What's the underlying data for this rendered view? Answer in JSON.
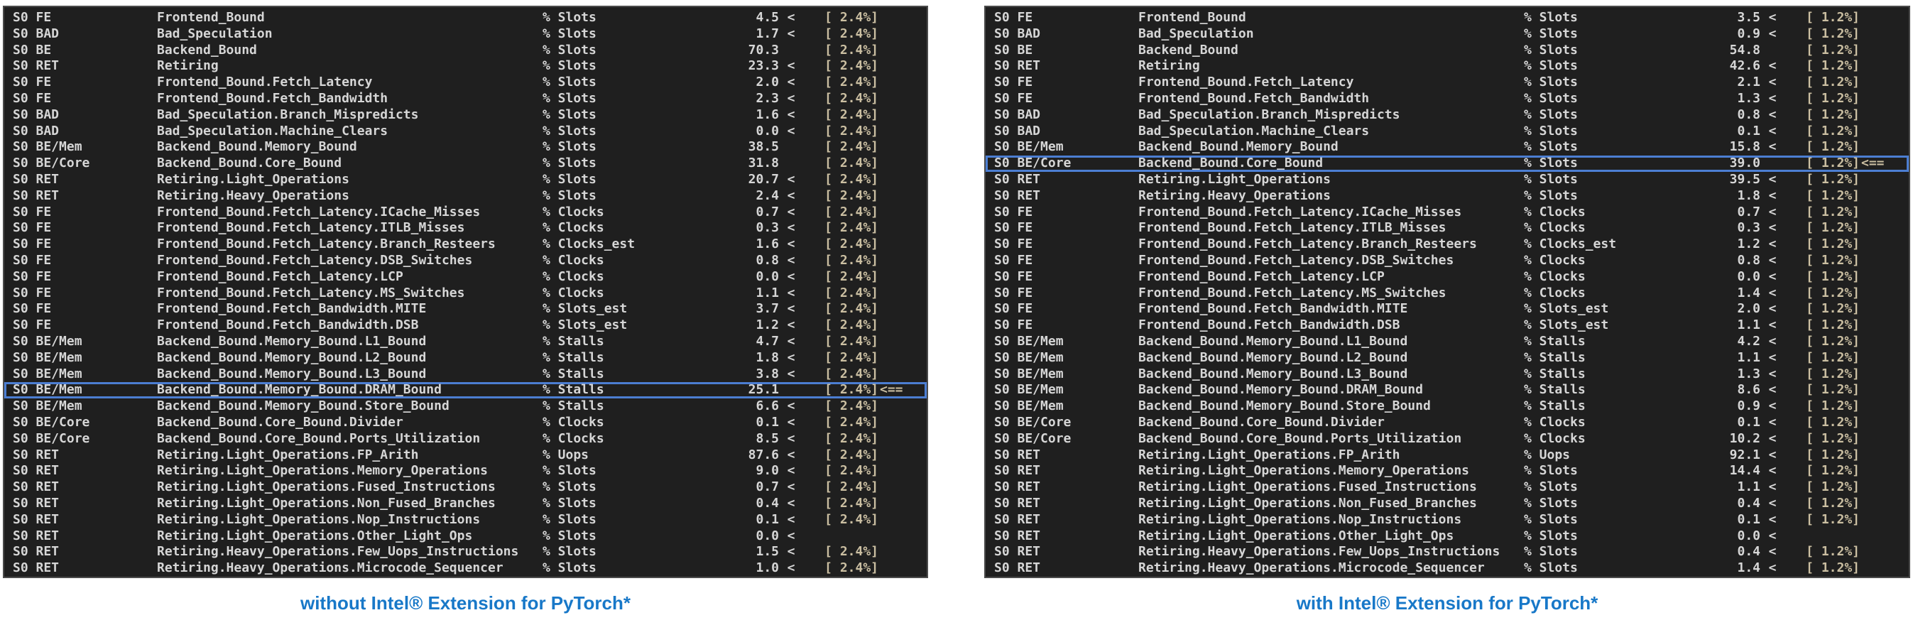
{
  "colors": {
    "terminal_bg": "#1f1f1f",
    "terminal_text": "#d6d6d6",
    "threshold_text": "#cbbfa2",
    "highlight_border": "#4c7ed2",
    "caption_blue": "#1878c8",
    "page_bg": "#ffffff"
  },
  "panels": [
    {
      "caption": "without Intel® Extension for PyTorch*",
      "rows": [
        {
          "domain": "S0 FE",
          "name": "Frontend_Bound",
          "unit": "% Slots",
          "value": "4.5",
          "flag": "<",
          "threshold": "[ 2.4%]",
          "marker": "",
          "highlight": false
        },
        {
          "domain": "S0 BAD",
          "name": "Bad_Speculation",
          "unit": "% Slots",
          "value": "1.7",
          "flag": "<",
          "threshold": "[ 2.4%]",
          "marker": "",
          "highlight": false
        },
        {
          "domain": "S0 BE",
          "name": "Backend_Bound",
          "unit": "% Slots",
          "value": "70.3",
          "flag": "",
          "threshold": "[ 2.4%]",
          "marker": "",
          "highlight": false
        },
        {
          "domain": "S0 RET",
          "name": "Retiring",
          "unit": "% Slots",
          "value": "23.3",
          "flag": "<",
          "threshold": "[ 2.4%]",
          "marker": "",
          "highlight": false
        },
        {
          "domain": "S0 FE",
          "name": "Frontend_Bound.Fetch_Latency",
          "unit": "% Slots",
          "value": "2.0",
          "flag": "<",
          "threshold": "[ 2.4%]",
          "marker": "",
          "highlight": false
        },
        {
          "domain": "S0 FE",
          "name": "Frontend_Bound.Fetch_Bandwidth",
          "unit": "% Slots",
          "value": "2.3",
          "flag": "<",
          "threshold": "[ 2.4%]",
          "marker": "",
          "highlight": false
        },
        {
          "domain": "S0 BAD",
          "name": "Bad_Speculation.Branch_Mispredicts",
          "unit": "% Slots",
          "value": "1.6",
          "flag": "<",
          "threshold": "[ 2.4%]",
          "marker": "",
          "highlight": false
        },
        {
          "domain": "S0 BAD",
          "name": "Bad_Speculation.Machine_Clears",
          "unit": "% Slots",
          "value": "0.0",
          "flag": "<",
          "threshold": "[ 2.4%]",
          "marker": "",
          "highlight": false
        },
        {
          "domain": "S0 BE/Mem",
          "name": "Backend_Bound.Memory_Bound",
          "unit": "% Slots",
          "value": "38.5",
          "flag": "",
          "threshold": "[ 2.4%]",
          "marker": "",
          "highlight": false
        },
        {
          "domain": "S0 BE/Core",
          "name": "Backend_Bound.Core_Bound",
          "unit": "% Slots",
          "value": "31.8",
          "flag": "",
          "threshold": "[ 2.4%]",
          "marker": "",
          "highlight": false
        },
        {
          "domain": "S0 RET",
          "name": "Retiring.Light_Operations",
          "unit": "% Slots",
          "value": "20.7",
          "flag": "<",
          "threshold": "[ 2.4%]",
          "marker": "",
          "highlight": false
        },
        {
          "domain": "S0 RET",
          "name": "Retiring.Heavy_Operations",
          "unit": "% Slots",
          "value": "2.4",
          "flag": "<",
          "threshold": "[ 2.4%]",
          "marker": "",
          "highlight": false
        },
        {
          "domain": "S0 FE",
          "name": "Frontend_Bound.Fetch_Latency.ICache_Misses",
          "unit": "% Clocks",
          "value": "0.7",
          "flag": "<",
          "threshold": "[ 2.4%]",
          "marker": "",
          "highlight": false
        },
        {
          "domain": "S0 FE",
          "name": "Frontend_Bound.Fetch_Latency.ITLB_Misses",
          "unit": "% Clocks",
          "value": "0.3",
          "flag": "<",
          "threshold": "[ 2.4%]",
          "marker": "",
          "highlight": false
        },
        {
          "domain": "S0 FE",
          "name": "Frontend_Bound.Fetch_Latency.Branch_Resteers",
          "unit": "% Clocks_est",
          "value": "1.6",
          "flag": "<",
          "threshold": "[ 2.4%]",
          "marker": "",
          "highlight": false
        },
        {
          "domain": "S0 FE",
          "name": "Frontend_Bound.Fetch_Latency.DSB_Switches",
          "unit": "% Clocks",
          "value": "0.8",
          "flag": "<",
          "threshold": "[ 2.4%]",
          "marker": "",
          "highlight": false
        },
        {
          "domain": "S0 FE",
          "name": "Frontend_Bound.Fetch_Latency.LCP",
          "unit": "% Clocks",
          "value": "0.0",
          "flag": "<",
          "threshold": "[ 2.4%]",
          "marker": "",
          "highlight": false
        },
        {
          "domain": "S0 FE",
          "name": "Frontend_Bound.Fetch_Latency.MS_Switches",
          "unit": "% Clocks",
          "value": "1.1",
          "flag": "<",
          "threshold": "[ 2.4%]",
          "marker": "",
          "highlight": false
        },
        {
          "domain": "S0 FE",
          "name": "Frontend_Bound.Fetch_Bandwidth.MITE",
          "unit": "% Slots_est",
          "value": "3.7",
          "flag": "<",
          "threshold": "[ 2.4%]",
          "marker": "",
          "highlight": false
        },
        {
          "domain": "S0 FE",
          "name": "Frontend_Bound.Fetch_Bandwidth.DSB",
          "unit": "% Slots_est",
          "value": "1.2",
          "flag": "<",
          "threshold": "[ 2.4%]",
          "marker": "",
          "highlight": false
        },
        {
          "domain": "S0 BE/Mem",
          "name": "Backend_Bound.Memory_Bound.L1_Bound",
          "unit": "% Stalls",
          "value": "4.7",
          "flag": "<",
          "threshold": "[ 2.4%]",
          "marker": "",
          "highlight": false
        },
        {
          "domain": "S0 BE/Mem",
          "name": "Backend_Bound.Memory_Bound.L2_Bound",
          "unit": "% Stalls",
          "value": "1.8",
          "flag": "<",
          "threshold": "[ 2.4%]",
          "marker": "",
          "highlight": false
        },
        {
          "domain": "S0 BE/Mem",
          "name": "Backend_Bound.Memory_Bound.L3_Bound",
          "unit": "% Stalls",
          "value": "3.8",
          "flag": "<",
          "threshold": "[ 2.4%]",
          "marker": "",
          "highlight": false
        },
        {
          "domain": "S0 BE/Mem",
          "name": "Backend_Bound.Memory_Bound.DRAM_Bound",
          "unit": "% Stalls",
          "value": "25.1",
          "flag": "",
          "threshold": "[ 2.4%]",
          "marker": "<==",
          "highlight": true
        },
        {
          "domain": "S0 BE/Mem",
          "name": "Backend_Bound.Memory_Bound.Store_Bound",
          "unit": "% Stalls",
          "value": "6.6",
          "flag": "<",
          "threshold": "[ 2.4%]",
          "marker": "",
          "highlight": false
        },
        {
          "domain": "S0 BE/Core",
          "name": "Backend_Bound.Core_Bound.Divider",
          "unit": "% Clocks",
          "value": "0.1",
          "flag": "<",
          "threshold": "[ 2.4%]",
          "marker": "",
          "highlight": false
        },
        {
          "domain": "S0 BE/Core",
          "name": "Backend_Bound.Core_Bound.Ports_Utilization",
          "unit": "% Clocks",
          "value": "8.5",
          "flag": "<",
          "threshold": "[ 2.4%]",
          "marker": "",
          "highlight": false
        },
        {
          "domain": "S0 RET",
          "name": "Retiring.Light_Operations.FP_Arith",
          "unit": "% Uops",
          "value": "87.6",
          "flag": "<",
          "threshold": "[ 2.4%]",
          "marker": "",
          "highlight": false
        },
        {
          "domain": "S0 RET",
          "name": "Retiring.Light_Operations.Memory_Operations",
          "unit": "% Slots",
          "value": "9.0",
          "flag": "<",
          "threshold": "[ 2.4%]",
          "marker": "",
          "highlight": false
        },
        {
          "domain": "S0 RET",
          "name": "Retiring.Light_Operations.Fused_Instructions",
          "unit": "% Slots",
          "value": "0.7",
          "flag": "<",
          "threshold": "[ 2.4%]",
          "marker": "",
          "highlight": false
        },
        {
          "domain": "S0 RET",
          "name": "Retiring.Light_Operations.Non_Fused_Branches",
          "unit": "% Slots",
          "value": "0.4",
          "flag": "<",
          "threshold": "[ 2.4%]",
          "marker": "",
          "highlight": false
        },
        {
          "domain": "S0 RET",
          "name": "Retiring.Light_Operations.Nop_Instructions",
          "unit": "% Slots",
          "value": "0.1",
          "flag": "<",
          "threshold": "[ 2.4%]",
          "marker": "",
          "highlight": false
        },
        {
          "domain": "S0 RET",
          "name": "Retiring.Light_Operations.Other_Light_Ops",
          "unit": "% Slots",
          "value": "0.0",
          "flag": "<",
          "threshold": "",
          "marker": "",
          "highlight": false
        },
        {
          "domain": "S0 RET",
          "name": "Retiring.Heavy_Operations.Few_Uops_Instructions",
          "unit": "% Slots",
          "value": "1.5",
          "flag": "<",
          "threshold": "[ 2.4%]",
          "marker": "",
          "highlight": false
        },
        {
          "domain": "S0 RET",
          "name": "Retiring.Heavy_Operations.Microcode_Sequencer",
          "unit": "% Slots",
          "value": "1.0",
          "flag": "<",
          "threshold": "[ 2.4%]",
          "marker": "",
          "highlight": false
        }
      ]
    },
    {
      "caption": "with Intel® Extension for PyTorch*",
      "rows": [
        {
          "domain": "S0 FE",
          "name": "Frontend_Bound",
          "unit": "% Slots",
          "value": "3.5",
          "flag": "<",
          "threshold": "[ 1.2%]",
          "marker": "",
          "highlight": false
        },
        {
          "domain": "S0 BAD",
          "name": "Bad_Speculation",
          "unit": "% Slots",
          "value": "0.9",
          "flag": "<",
          "threshold": "[ 1.2%]",
          "marker": "",
          "highlight": false
        },
        {
          "domain": "S0 BE",
          "name": "Backend_Bound",
          "unit": "% Slots",
          "value": "54.8",
          "flag": "",
          "threshold": "[ 1.2%]",
          "marker": "",
          "highlight": false
        },
        {
          "domain": "S0 RET",
          "name": "Retiring",
          "unit": "% Slots",
          "value": "42.6",
          "flag": "<",
          "threshold": "[ 1.2%]",
          "marker": "",
          "highlight": false
        },
        {
          "domain": "S0 FE",
          "name": "Frontend_Bound.Fetch_Latency",
          "unit": "% Slots",
          "value": "2.1",
          "flag": "<",
          "threshold": "[ 1.2%]",
          "marker": "",
          "highlight": false
        },
        {
          "domain": "S0 FE",
          "name": "Frontend_Bound.Fetch_Bandwidth",
          "unit": "% Slots",
          "value": "1.3",
          "flag": "<",
          "threshold": "[ 1.2%]",
          "marker": "",
          "highlight": false
        },
        {
          "domain": "S0 BAD",
          "name": "Bad_Speculation.Branch_Mispredicts",
          "unit": "% Slots",
          "value": "0.8",
          "flag": "<",
          "threshold": "[ 1.2%]",
          "marker": "",
          "highlight": false
        },
        {
          "domain": "S0 BAD",
          "name": "Bad_Speculation.Machine_Clears",
          "unit": "% Slots",
          "value": "0.1",
          "flag": "<",
          "threshold": "[ 1.2%]",
          "marker": "",
          "highlight": false
        },
        {
          "domain": "S0 BE/Mem",
          "name": "Backend_Bound.Memory_Bound",
          "unit": "% Slots",
          "value": "15.8",
          "flag": "<",
          "threshold": "[ 1.2%]",
          "marker": "",
          "highlight": false
        },
        {
          "domain": "S0 BE/Core",
          "name": "Backend_Bound.Core_Bound",
          "unit": "% Slots",
          "value": "39.0",
          "flag": "",
          "threshold": "[ 1.2%]",
          "marker": "<==",
          "highlight": true
        },
        {
          "domain": "S0 RET",
          "name": "Retiring.Light_Operations",
          "unit": "% Slots",
          "value": "39.5",
          "flag": "<",
          "threshold": "[ 1.2%]",
          "marker": "",
          "highlight": false
        },
        {
          "domain": "S0 RET",
          "name": "Retiring.Heavy_Operations",
          "unit": "% Slots",
          "value": "1.8",
          "flag": "<",
          "threshold": "[ 1.2%]",
          "marker": "",
          "highlight": false
        },
        {
          "domain": "S0 FE",
          "name": "Frontend_Bound.Fetch_Latency.ICache_Misses",
          "unit": "% Clocks",
          "value": "0.7",
          "flag": "<",
          "threshold": "[ 1.2%]",
          "marker": "",
          "highlight": false
        },
        {
          "domain": "S0 FE",
          "name": "Frontend_Bound.Fetch_Latency.ITLB_Misses",
          "unit": "% Clocks",
          "value": "0.3",
          "flag": "<",
          "threshold": "[ 1.2%]",
          "marker": "",
          "highlight": false
        },
        {
          "domain": "S0 FE",
          "name": "Frontend_Bound.Fetch_Latency.Branch_Resteers",
          "unit": "% Clocks_est",
          "value": "1.2",
          "flag": "<",
          "threshold": "[ 1.2%]",
          "marker": "",
          "highlight": false
        },
        {
          "domain": "S0 FE",
          "name": "Frontend_Bound.Fetch_Latency.DSB_Switches",
          "unit": "% Clocks",
          "value": "0.8",
          "flag": "<",
          "threshold": "[ 1.2%]",
          "marker": "",
          "highlight": false
        },
        {
          "domain": "S0 FE",
          "name": "Frontend_Bound.Fetch_Latency.LCP",
          "unit": "% Clocks",
          "value": "0.0",
          "flag": "<",
          "threshold": "[ 1.2%]",
          "marker": "",
          "highlight": false
        },
        {
          "domain": "S0 FE",
          "name": "Frontend_Bound.Fetch_Latency.MS_Switches",
          "unit": "% Clocks",
          "value": "1.4",
          "flag": "<",
          "threshold": "[ 1.2%]",
          "marker": "",
          "highlight": false
        },
        {
          "domain": "S0 FE",
          "name": "Frontend_Bound.Fetch_Bandwidth.MITE",
          "unit": "% Slots_est",
          "value": "2.0",
          "flag": "<",
          "threshold": "[ 1.2%]",
          "marker": "",
          "highlight": false
        },
        {
          "domain": "S0 FE",
          "name": "Frontend_Bound.Fetch_Bandwidth.DSB",
          "unit": "% Slots_est",
          "value": "1.1",
          "flag": "<",
          "threshold": "[ 1.2%]",
          "marker": "",
          "highlight": false
        },
        {
          "domain": "S0 BE/Mem",
          "name": "Backend_Bound.Memory_Bound.L1_Bound",
          "unit": "% Stalls",
          "value": "4.2",
          "flag": "<",
          "threshold": "[ 1.2%]",
          "marker": "",
          "highlight": false
        },
        {
          "domain": "S0 BE/Mem",
          "name": "Backend_Bound.Memory_Bound.L2_Bound",
          "unit": "% Stalls",
          "value": "1.1",
          "flag": "<",
          "threshold": "[ 1.2%]",
          "marker": "",
          "highlight": false
        },
        {
          "domain": "S0 BE/Mem",
          "name": "Backend_Bound.Memory_Bound.L3_Bound",
          "unit": "% Stalls",
          "value": "1.3",
          "flag": "<",
          "threshold": "[ 1.2%]",
          "marker": "",
          "highlight": false
        },
        {
          "domain": "S0 BE/Mem",
          "name": "Backend_Bound.Memory_Bound.DRAM_Bound",
          "unit": "% Stalls",
          "value": "8.6",
          "flag": "<",
          "threshold": "[ 1.2%]",
          "marker": "",
          "highlight": false
        },
        {
          "domain": "S0 BE/Mem",
          "name": "Backend_Bound.Memory_Bound.Store_Bound",
          "unit": "% Stalls",
          "value": "0.9",
          "flag": "<",
          "threshold": "[ 1.2%]",
          "marker": "",
          "highlight": false
        },
        {
          "domain": "S0 BE/Core",
          "name": "Backend_Bound.Core_Bound.Divider",
          "unit": "% Clocks",
          "value": "0.1",
          "flag": "<",
          "threshold": "[ 1.2%]",
          "marker": "",
          "highlight": false
        },
        {
          "domain": "S0 BE/Core",
          "name": "Backend_Bound.Core_Bound.Ports_Utilization",
          "unit": "% Clocks",
          "value": "10.2",
          "flag": "<",
          "threshold": "[ 1.2%]",
          "marker": "",
          "highlight": false
        },
        {
          "domain": "S0 RET",
          "name": "Retiring.Light_Operations.FP_Arith",
          "unit": "% Uops",
          "value": "92.1",
          "flag": "<",
          "threshold": "[ 1.2%]",
          "marker": "",
          "highlight": false
        },
        {
          "domain": "S0 RET",
          "name": "Retiring.Light_Operations.Memory_Operations",
          "unit": "% Slots",
          "value": "14.4",
          "flag": "<",
          "threshold": "[ 1.2%]",
          "marker": "",
          "highlight": false
        },
        {
          "domain": "S0 RET",
          "name": "Retiring.Light_Operations.Fused_Instructions",
          "unit": "% Slots",
          "value": "1.1",
          "flag": "<",
          "threshold": "[ 1.2%]",
          "marker": "",
          "highlight": false
        },
        {
          "domain": "S0 RET",
          "name": "Retiring.Light_Operations.Non_Fused_Branches",
          "unit": "% Slots",
          "value": "0.4",
          "flag": "<",
          "threshold": "[ 1.2%]",
          "marker": "",
          "highlight": false
        },
        {
          "domain": "S0 RET",
          "name": "Retiring.Light_Operations.Nop_Instructions",
          "unit": "% Slots",
          "value": "0.1",
          "flag": "<",
          "threshold": "[ 1.2%]",
          "marker": "",
          "highlight": false
        },
        {
          "domain": "S0 RET",
          "name": "Retiring.Light_Operations.Other_Light_Ops",
          "unit": "% Slots",
          "value": "0.0",
          "flag": "<",
          "threshold": "",
          "marker": "",
          "highlight": false
        },
        {
          "domain": "S0 RET",
          "name": "Retiring.Heavy_Operations.Few_Uops_Instructions",
          "unit": "% Slots",
          "value": "0.4",
          "flag": "<",
          "threshold": "[ 1.2%]",
          "marker": "",
          "highlight": false
        },
        {
          "domain": "S0 RET",
          "name": "Retiring.Heavy_Operations.Microcode_Sequencer",
          "unit": "% Slots",
          "value": "1.4",
          "flag": "<",
          "threshold": "[ 1.2%]",
          "marker": "",
          "highlight": false
        }
      ]
    }
  ]
}
